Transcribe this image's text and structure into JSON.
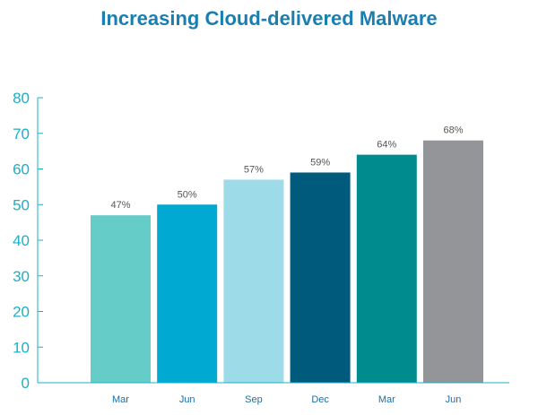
{
  "chart_data": {
    "type": "bar",
    "title": "Increasing Cloud-delivered Malware",
    "categories": [
      "Mar",
      "Jun",
      "Sep",
      "Dec",
      "Mar",
      "Jun"
    ],
    "values": [
      47,
      50,
      57,
      59,
      64,
      68
    ],
    "data_labels": [
      "47%",
      "50%",
      "57%",
      "59%",
      "64%",
      "68%"
    ],
    "bar_colors": [
      "#66ccc8",
      "#00a9d2",
      "#9edbe9",
      "#005a7c",
      "#008c8e",
      "#939598"
    ],
    "yticks": [
      "0",
      "10",
      "20",
      "30",
      "40",
      "50",
      "60",
      "70",
      "80"
    ],
    "ylim": [
      0,
      80
    ],
    "xlabel": "",
    "ylabel": "",
    "grid": false,
    "axis_color": "#1ab0c8",
    "tick_label_color": "#1ab0c8",
    "category_label_color": "#1a6fa8",
    "title_color": "#1a7fb0"
  }
}
